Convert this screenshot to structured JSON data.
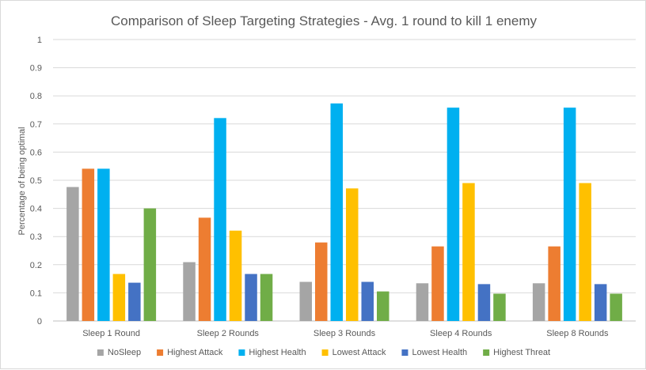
{
  "chart_data": {
    "type": "bar",
    "title": "Comparison of Sleep Targeting Strategies - Avg. 1 round to kill 1 enemy",
    "xlabel": "",
    "ylabel": "Percentage of being optimal",
    "ylim": [
      0,
      1
    ],
    "yticks": [
      "0",
      "0.1",
      "0.2",
      "0.3",
      "0.4",
      "0.5",
      "0.6",
      "0.7",
      "0.8",
      "0.9",
      "1"
    ],
    "grid": true,
    "legend_position": "bottom",
    "categories": [
      "Sleep 1 Round",
      "Sleep 2 Rounds",
      "Sleep 3 Rounds",
      "Sleep 4 Rounds",
      "Sleep 8 Rounds"
    ],
    "series": [
      {
        "name": "NoSleep",
        "color": "#a5a5a5",
        "values": [
          0.476,
          0.209,
          0.139,
          0.134,
          0.134
        ]
      },
      {
        "name": "Highest Attack",
        "color": "#ed7d31",
        "values": [
          0.541,
          0.367,
          0.279,
          0.265,
          0.265
        ]
      },
      {
        "name": "Highest Health",
        "color": "#00b0f0",
        "values": [
          0.541,
          0.721,
          0.773,
          0.758,
          0.758
        ]
      },
      {
        "name": "Lowest Attack",
        "color": "#ffc000",
        "values": [
          0.167,
          0.321,
          0.471,
          0.49,
          0.49
        ]
      },
      {
        "name": "Lowest Health",
        "color": "#4472c4",
        "values": [
          0.136,
          0.167,
          0.139,
          0.131,
          0.131
        ]
      },
      {
        "name": "Highest Threat",
        "color": "#70ad47",
        "values": [
          0.4,
          0.167,
          0.105,
          0.097,
          0.097
        ]
      }
    ]
  }
}
